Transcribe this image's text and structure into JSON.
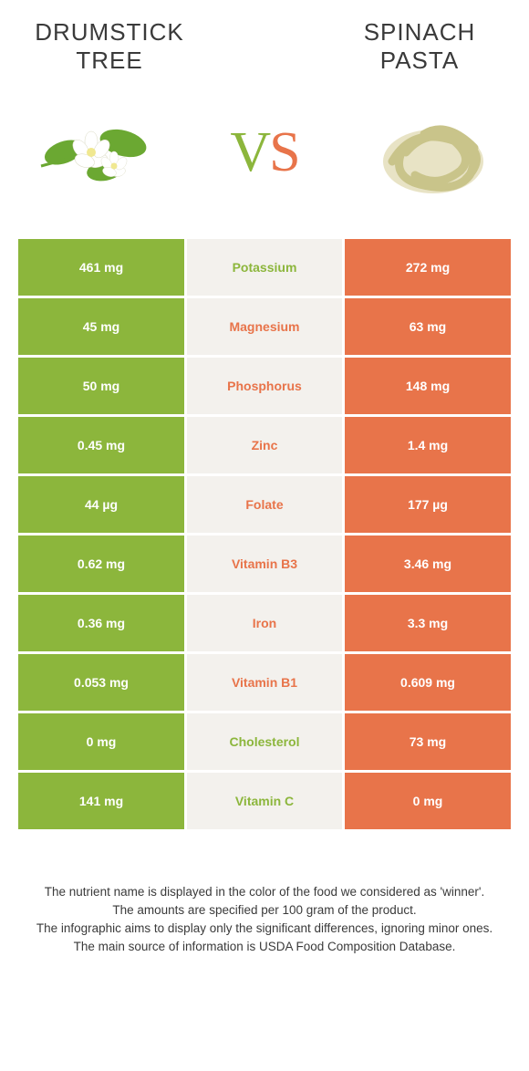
{
  "left_title": "Drumstick tree",
  "right_title": "Spinach pasta",
  "vs": {
    "v": "V",
    "s": "S"
  },
  "colors": {
    "green": "#8cb63c",
    "orange": "#e8744a",
    "mid_bg": "#f3f1ed",
    "white": "#ffffff"
  },
  "rows": [
    {
      "nutrient": "Potassium",
      "left": "461 mg",
      "right": "272 mg",
      "winner": "left"
    },
    {
      "nutrient": "Magnesium",
      "left": "45 mg",
      "right": "63 mg",
      "winner": "right"
    },
    {
      "nutrient": "Phosphorus",
      "left": "50 mg",
      "right": "148 mg",
      "winner": "right"
    },
    {
      "nutrient": "Zinc",
      "left": "0.45 mg",
      "right": "1.4 mg",
      "winner": "right"
    },
    {
      "nutrient": "Folate",
      "left": "44 µg",
      "right": "177 µg",
      "winner": "right"
    },
    {
      "nutrient": "Vitamin B3",
      "left": "0.62 mg",
      "right": "3.46 mg",
      "winner": "right"
    },
    {
      "nutrient": "Iron",
      "left": "0.36 mg",
      "right": "3.3 mg",
      "winner": "right"
    },
    {
      "nutrient": "Vitamin B1",
      "left": "0.053 mg",
      "right": "0.609 mg",
      "winner": "right"
    },
    {
      "nutrient": "Cholesterol",
      "left": "0 mg",
      "right": "73 mg",
      "winner": "left"
    },
    {
      "nutrient": "Vitamin C",
      "left": "141 mg",
      "right": "0 mg",
      "winner": "left"
    }
  ],
  "footer": [
    "The nutrient name is displayed in the color of the food we considered as 'winner'.",
    "The amounts are specified per 100 gram of the product.",
    "The infographic aims to display only the significant differences, ignoring minor ones.",
    "The main source of information is USDA Food Composition Database."
  ]
}
